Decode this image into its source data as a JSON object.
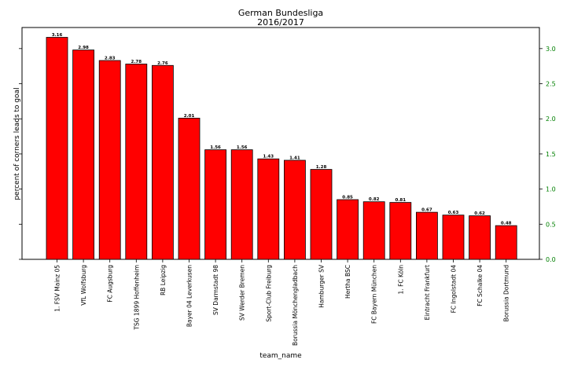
{
  "chart_data": {
    "type": "bar",
    "title": "German Bundesliga",
    "subtitle": "2016/2017",
    "xlabel": "team_name",
    "ylabel": "percent of corners leads to goal",
    "ylim": [
      0,
      3.3
    ],
    "yticks": [
      "0.0",
      "0.5",
      "1.0",
      "1.5",
      "2.0",
      "2.5",
      "3.0"
    ],
    "grid": false,
    "colors": {
      "bar": "#ff0000",
      "bar_edge": "#000000",
      "ytick_color": "#008000"
    },
    "categories": [
      "1. FSV Mainz 05",
      "VfL Wolfsburg",
      "FC Augsburg",
      "TSG 1899 Hoffenheim",
      "RB Leipzig",
      "Bayer 04 Leverkusen",
      "SV Darmstadt 98",
      "SV Werder Bremen",
      "Sport-Club Freiburg",
      "Borussia Mönchengladbach",
      "Hamburger SV",
      "Hertha BSC",
      "FC Bayern München",
      "1. FC Köln",
      "Eintracht Frankfurt",
      "FC Ingolstadt 04",
      "FC Schalke 04",
      "Borussia Dortmund"
    ],
    "values": [
      3.16,
      2.98,
      2.83,
      2.78,
      2.76,
      2.01,
      1.56,
      1.56,
      1.43,
      1.41,
      1.28,
      0.85,
      0.82,
      0.81,
      0.67,
      0.63,
      0.62,
      0.48
    ],
    "data_labels": [
      "3.16",
      "2.98",
      "2.83",
      "2.78",
      "2.76",
      "2.01",
      "1.56",
      "1.56",
      "1.43",
      "1.41",
      "1.28",
      "0.85",
      "0.82",
      "0.81",
      "0.67",
      "0.63",
      "0.62",
      "0.48"
    ]
  }
}
